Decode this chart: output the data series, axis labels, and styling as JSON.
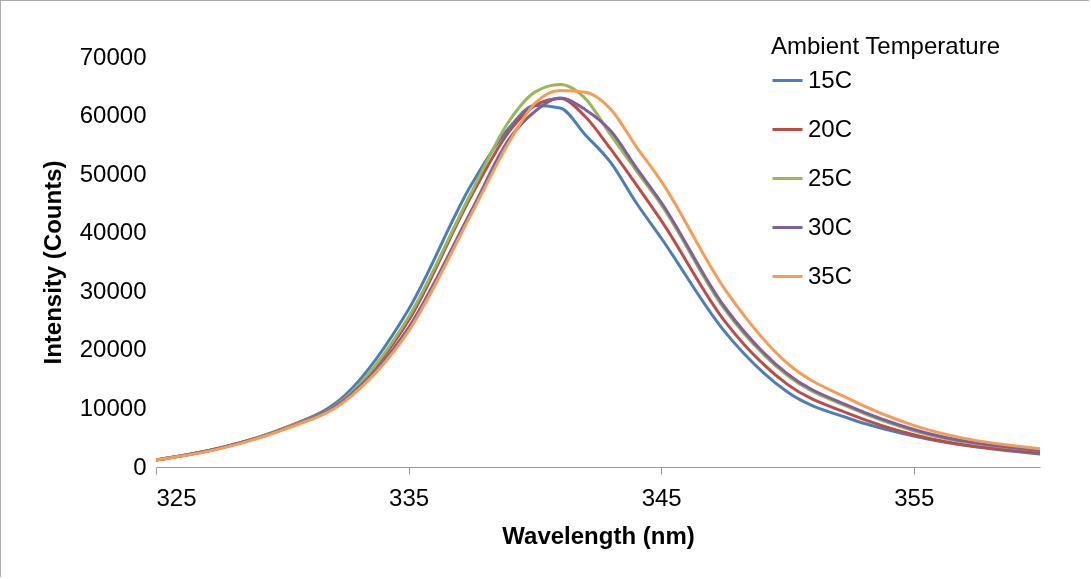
{
  "chart_data": {
    "type": "line",
    "xlabel": "Wavelength (nm)",
    "ylabel": "Intensity (Counts)",
    "legend_title": "Ambient Temperature",
    "legend": "top right",
    "grid": false,
    "x": [
      325,
      327.5,
      330,
      332.5,
      335,
      337.5,
      339,
      340,
      341,
      342,
      343,
      344,
      345,
      347.5,
      350,
      352.5,
      355,
      360
    ],
    "xlim": [
      325,
      360
    ],
    "xticks": [
      325,
      335,
      345,
      355
    ],
    "ylim": [
      0,
      70000
    ],
    "yticks": [
      0,
      10000,
      20000,
      30000,
      40000,
      50000,
      60000,
      70000
    ],
    "series": [
      {
        "name": "15C",
        "color": "#4a7ebb",
        "values": [
          1200,
          3200,
          6500,
          12300,
          26900,
          48300,
          58000,
          61700,
          61300,
          56700,
          52000,
          45200,
          39100,
          23200,
          12800,
          8200,
          5300,
          2200
        ]
      },
      {
        "name": "20C",
        "color": "#be4b48",
        "values": [
          1200,
          3200,
          6500,
          11800,
          25000,
          46400,
          57400,
          61700,
          62900,
          59800,
          54300,
          48300,
          42100,
          25000,
          14100,
          9000,
          5500,
          2500
        ]
      },
      {
        "name": "25C",
        "color": "#98b954",
        "values": [
          1200,
          3200,
          6500,
          11800,
          25600,
          47000,
          59200,
          64000,
          65300,
          62900,
          56700,
          50700,
          44800,
          27000,
          15600,
          10100,
          6200,
          2800
        ]
      },
      {
        "name": "30C",
        "color": "#7d60a0",
        "values": [
          1200,
          3200,
          6400,
          11600,
          23800,
          43900,
          56100,
          60700,
          63000,
          61000,
          57400,
          51200,
          45200,
          27400,
          15900,
          10300,
          6400,
          2800
        ]
      },
      {
        "name": "35C",
        "color": "#f59d56",
        "values": [
          1200,
          3100,
          6300,
          11300,
          23200,
          43300,
          55600,
          62100,
          64300,
          64000,
          61100,
          54800,
          48800,
          30500,
          17700,
          11500,
          7100,
          3100
        ]
      }
    ]
  }
}
